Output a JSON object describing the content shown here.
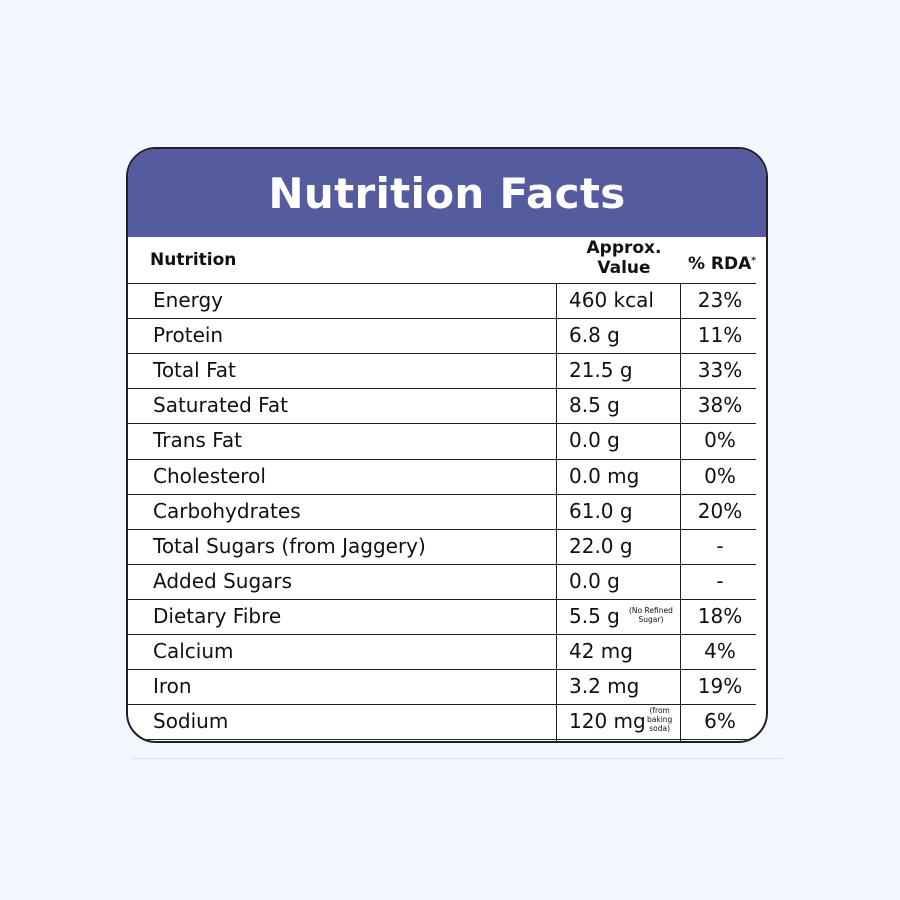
{
  "title": "Nutrition Facts",
  "columns": {
    "nutrition": "Nutrition",
    "approx_line1": "Approx.",
    "approx_line2": "Value",
    "rda": "% RDA",
    "rda_mark": "*"
  },
  "rows": [
    {
      "name": "Energy",
      "value": "460 kcal",
      "rda": "23%"
    },
    {
      "name": "Protein",
      "value": "6.8 g",
      "rda": "11%"
    },
    {
      "name": "Total Fat",
      "value": "21.5 g",
      "rda": "33%"
    },
    {
      "name": "Saturated Fat",
      "value": "8.5 g",
      "rda": "38%"
    },
    {
      "name": "Trans Fat",
      "value": "0.0 g",
      "rda": "0%"
    },
    {
      "name": "Cholesterol",
      "value": "0.0 mg",
      "rda": "0%"
    },
    {
      "name": "Carbohydrates",
      "value": "61.0 g",
      "rda": "20%"
    },
    {
      "name": "Total Sugars (from Jaggery)",
      "value": "22.0 g",
      "rda": "-"
    },
    {
      "name": "Added Sugars",
      "value": "0.0 g",
      "rda": "-"
    },
    {
      "name": "Dietary Fibre",
      "value": "5.5 g",
      "rda": "18%",
      "note": [
        "(No Refined",
        "Sugar)"
      ]
    },
    {
      "name": "Calcium",
      "value": "42 mg",
      "rda": "4%"
    },
    {
      "name": "Iron",
      "value": "3.2 mg",
      "rda": "19%"
    },
    {
      "name": "Sodium",
      "value": "120 mg",
      "rda": "6%",
      "note": [
        "(from",
        "baking",
        "soda)"
      ]
    }
  ],
  "colors": {
    "header_bg": "#545c9f",
    "header_text": "#ffffff",
    "page_bg": "#f4f6fd",
    "border": "#1f1f2a"
  }
}
